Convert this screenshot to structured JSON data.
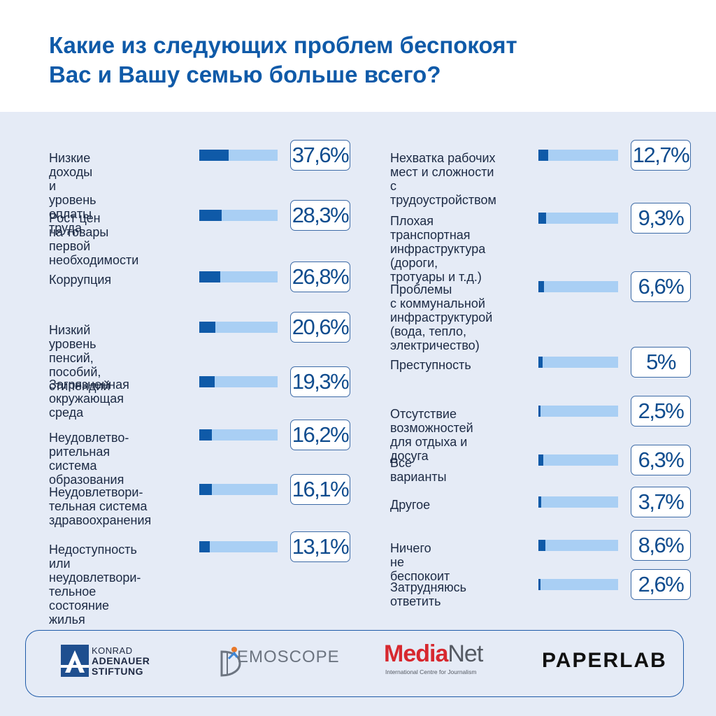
{
  "title": {
    "line1": "Какие из следующих проблем беспокоят",
    "line2": "Вас и Вашу семью больше всего?"
  },
  "colors": {
    "accent": "#0f5aa8",
    "bar_track": "#a9cff4",
    "background": "#e5ebf6"
  },
  "chart_data": {
    "type": "bar",
    "orientation": "horizontal",
    "unit": "%",
    "xlim": [
      0,
      100
    ],
    "columns": [
      {
        "items": [
          {
            "label": "Низкие доходы\nи уровень оплаты\nтруда",
            "value": 37.6,
            "display": "37,6%"
          },
          {
            "label": "Рост цен\nна товары первой\nнеобходимости",
            "value": 28.3,
            "display": "28,3%"
          },
          {
            "label": "Коррупция",
            "value": 26.8,
            "display": "26,8%"
          },
          {
            "label": "Низкий уровень\nпенсий, пособий,\nстипендий",
            "value": 20.6,
            "display": "20,6%"
          },
          {
            "label": "Загрязненная\nокружающая среда",
            "value": 19.3,
            "display": "19,3%"
          },
          {
            "label": "Неудовлетво-\nрительная система\nобразования",
            "value": 16.2,
            "display": "16,2%"
          },
          {
            "label": "Неудовлетвори-\nтельная система\nздравоохранения",
            "value": 16.1,
            "display": "16,1%"
          },
          {
            "label": "Недоступность\nили неудовлетвори-\nтельное состояние\nжилья",
            "value": 13.1,
            "display": "13,1%"
          }
        ]
      },
      {
        "items": [
          {
            "label": "Нехватка рабочих\nмест и сложности\nс трудоустройством",
            "value": 12.7,
            "display": "12,7%"
          },
          {
            "label": "Плохая\nтранспортная\nинфраструктура (дороги,\nтротуары и т.д.)",
            "value": 9.3,
            "display": "9,3%"
          },
          {
            "label": "Проблемы\nс коммунальной\nинфраструктурой\n(вода, тепло, электричество)",
            "value": 6.6,
            "display": "6,6%"
          },
          {
            "label": "Преступность",
            "value": 5,
            "display": "5%"
          },
          {
            "label": "Отсутствие\nвозможностей\nдля отдыха и досуга",
            "value": 2.5,
            "display": "2,5%"
          },
          {
            "label": "Все варианты",
            "value": 6.3,
            "display": "6,3%"
          },
          {
            "label": "Другое",
            "value": 3.7,
            "display": "3,7%"
          },
          {
            "label": "Ничего\nне беспокоит",
            "value": 8.6,
            "display": "8,6%"
          },
          {
            "label": "Затрудняюсь\nответить",
            "value": 2.6,
            "display": "2,6%"
          }
        ]
      }
    ]
  },
  "footer": {
    "kas": {
      "line1": "KONRAD",
      "line2": "ADENAUER",
      "line3": "STIFTUNG"
    },
    "demoscope": {
      "text": "EMOSCOPE"
    },
    "medianet": {
      "part1": "Media",
      "part2": "Net",
      "subtitle": "International Centre for Journalism"
    },
    "paperlab": {
      "text": "PAPERLAB"
    }
  }
}
